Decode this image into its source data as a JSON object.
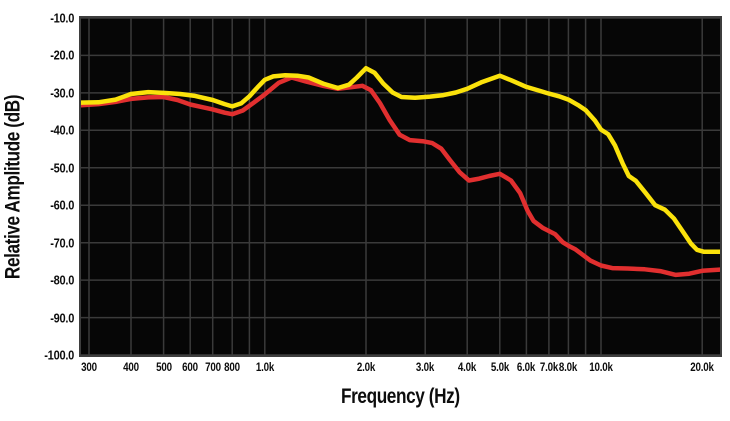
{
  "chart_data": {
    "type": "line",
    "title": "",
    "xlabel": "Frequency (Hz)",
    "ylabel": "Relative Amplitude (dB)",
    "x_scale": "log",
    "xlim": [
      284,
      22600
    ],
    "ylim": [
      -100,
      -10
    ],
    "grid": "on",
    "legend": "none",
    "page_background": "#ffffff",
    "plot_background": "#060606",
    "grid_color": "#3a3a3a",
    "frame_color": "#3e3e3e",
    "text_color": "#0d0d0d",
    "x_gridlines": [
      300,
      400,
      500,
      600,
      700,
      800,
      900,
      1000,
      2000,
      3000,
      4000,
      5000,
      6000,
      7000,
      8000,
      9000,
      10000,
      20000
    ],
    "y_gridlines": [
      -10,
      -20,
      -30,
      -40,
      -50,
      -60,
      -70,
      -80,
      -90,
      -100
    ],
    "x_ticks": [
      {
        "value": 300,
        "label": "300"
      },
      {
        "value": 400,
        "label": "400"
      },
      {
        "value": 500,
        "label": "500"
      },
      {
        "value": 600,
        "label": "600"
      },
      {
        "value": 700,
        "label": "700"
      },
      {
        "value": 800,
        "label": "800"
      },
      {
        "value": 1000,
        "label": "1.0k"
      },
      {
        "value": 2000,
        "label": "2.0k"
      },
      {
        "value": 3000,
        "label": "3.0k"
      },
      {
        "value": 4000,
        "label": "4.0k"
      },
      {
        "value": 5000,
        "label": "5.0k"
      },
      {
        "value": 6000,
        "label": "6.0k"
      },
      {
        "value": 7000,
        "label": "7.0k"
      },
      {
        "value": 8000,
        "label": "8.0k"
      },
      {
        "value": 10000,
        "label": "10.0k"
      },
      {
        "value": 20000,
        "label": "20.0k"
      }
    ],
    "y_ticks": [
      {
        "value": -10,
        "label": "-10.0"
      },
      {
        "value": -20,
        "label": "-20.0"
      },
      {
        "value": -30,
        "label": "-30.0"
      },
      {
        "value": -40,
        "label": "-40.0"
      },
      {
        "value": -50,
        "label": "-50.0"
      },
      {
        "value": -60,
        "label": "-60.0"
      },
      {
        "value": -70,
        "label": "-70.0"
      },
      {
        "value": -80,
        "label": "-80.0"
      },
      {
        "value": -90,
        "label": "-90.0"
      },
      {
        "value": -100,
        "label": "-100.0"
      }
    ],
    "series": [
      {
        "name": "red",
        "color": "#e12f2f",
        "points": [
          [
            284,
            -33.3
          ],
          [
            320,
            -33.0
          ],
          [
            360,
            -32.4
          ],
          [
            400,
            -31.6
          ],
          [
            450,
            -31.2
          ],
          [
            500,
            -31.1
          ],
          [
            550,
            -31.9
          ],
          [
            600,
            -33.1
          ],
          [
            650,
            -33.8
          ],
          [
            700,
            -34.4
          ],
          [
            760,
            -35.3
          ],
          [
            800,
            -35.7
          ],
          [
            860,
            -34.7
          ],
          [
            930,
            -32.5
          ],
          [
            1000,
            -30.4
          ],
          [
            1100,
            -27.3
          ],
          [
            1200,
            -25.9
          ],
          [
            1320,
            -26.9
          ],
          [
            1500,
            -28.2
          ],
          [
            1650,
            -28.9
          ],
          [
            1800,
            -28.5
          ],
          [
            1950,
            -28.1
          ],
          [
            2070,
            -29.3
          ],
          [
            2200,
            -32.7
          ],
          [
            2350,
            -37.2
          ],
          [
            2520,
            -41.2
          ],
          [
            2700,
            -42.6
          ],
          [
            2950,
            -42.9
          ],
          [
            3150,
            -43.4
          ],
          [
            3350,
            -44.9
          ],
          [
            3550,
            -47.9
          ],
          [
            3800,
            -51.2
          ],
          [
            4050,
            -53.4
          ],
          [
            4350,
            -52.9
          ],
          [
            4650,
            -52.2
          ],
          [
            5000,
            -51.6
          ],
          [
            5400,
            -53.4
          ],
          [
            5750,
            -56.8
          ],
          [
            6050,
            -61.5
          ],
          [
            6300,
            -64.2
          ],
          [
            6700,
            -66.0
          ],
          [
            7300,
            -67.7
          ],
          [
            7700,
            -69.9
          ],
          [
            8000,
            -70.8
          ],
          [
            8400,
            -71.8
          ],
          [
            9300,
            -74.8
          ],
          [
            10000,
            -76.1
          ],
          [
            10800,
            -76.8
          ],
          [
            12000,
            -76.9
          ],
          [
            13500,
            -77.1
          ],
          [
            15000,
            -77.6
          ],
          [
            16700,
            -78.6
          ],
          [
            18300,
            -78.3
          ],
          [
            20000,
            -77.5
          ],
          [
            22600,
            -77.2
          ]
        ]
      },
      {
        "name": "yellow",
        "color": "#fbe20b",
        "points": [
          [
            284,
            -32.6
          ],
          [
            320,
            -32.5
          ],
          [
            360,
            -31.8
          ],
          [
            400,
            -30.3
          ],
          [
            450,
            -29.8
          ],
          [
            500,
            -30.0
          ],
          [
            560,
            -30.3
          ],
          [
            620,
            -30.8
          ],
          [
            700,
            -31.9
          ],
          [
            760,
            -33.0
          ],
          [
            800,
            -33.6
          ],
          [
            850,
            -32.8
          ],
          [
            900,
            -30.9
          ],
          [
            950,
            -28.6
          ],
          [
            1000,
            -26.5
          ],
          [
            1060,
            -25.6
          ],
          [
            1150,
            -25.3
          ],
          [
            1250,
            -25.4
          ],
          [
            1350,
            -25.9
          ],
          [
            1500,
            -27.6
          ],
          [
            1650,
            -28.7
          ],
          [
            1780,
            -27.8
          ],
          [
            1880,
            -25.9
          ],
          [
            2000,
            -23.4
          ],
          [
            2120,
            -24.6
          ],
          [
            2250,
            -27.5
          ],
          [
            2400,
            -29.9
          ],
          [
            2550,
            -31.1
          ],
          [
            2800,
            -31.3
          ],
          [
            3100,
            -31.0
          ],
          [
            3400,
            -30.6
          ],
          [
            3700,
            -29.9
          ],
          [
            4000,
            -28.9
          ],
          [
            4400,
            -27.2
          ],
          [
            5000,
            -25.4
          ],
          [
            5400,
            -26.6
          ],
          [
            6000,
            -28.4
          ],
          [
            6600,
            -29.5
          ],
          [
            7000,
            -30.2
          ],
          [
            7500,
            -30.9
          ],
          [
            8000,
            -31.8
          ],
          [
            8600,
            -33.4
          ],
          [
            9000,
            -34.6
          ],
          [
            9600,
            -37.4
          ],
          [
            10000,
            -39.8
          ],
          [
            10500,
            -41.0
          ],
          [
            11000,
            -44.0
          ],
          [
            11600,
            -48.8
          ],
          [
            12100,
            -52.2
          ],
          [
            12700,
            -53.5
          ],
          [
            13600,
            -56.8
          ],
          [
            14500,
            -60.0
          ],
          [
            15500,
            -61.2
          ],
          [
            16500,
            -63.6
          ],
          [
            17500,
            -67.0
          ],
          [
            18500,
            -70.2
          ],
          [
            19300,
            -71.9
          ],
          [
            20200,
            -72.4
          ],
          [
            22600,
            -72.4
          ]
        ]
      }
    ]
  }
}
